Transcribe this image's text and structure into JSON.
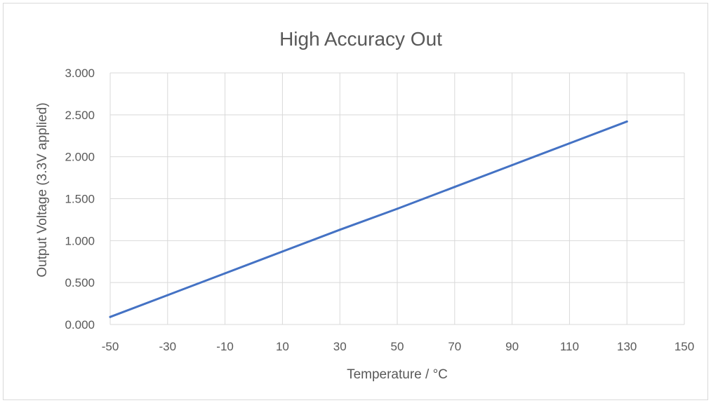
{
  "chart_data": {
    "type": "line",
    "title": "High Accuracy Out",
    "xlabel": "Temperature / °C",
    "ylabel": "Output Voltage (3.3V applied)",
    "xlim": [
      -50,
      150
    ],
    "ylim": [
      0,
      3
    ],
    "x_ticks": [
      -50,
      -30,
      -10,
      10,
      30,
      50,
      70,
      90,
      110,
      130,
      150
    ],
    "x_tick_labels": [
      "-50",
      "-30",
      "-10",
      "10",
      "30",
      "50",
      "70",
      "90",
      "110",
      "130",
      "150"
    ],
    "y_ticks": [
      0,
      0.5,
      1,
      1.5,
      2,
      2.5,
      3
    ],
    "y_tick_labels": [
      "0.000",
      "0.500",
      "1.000",
      "1.500",
      "2.000",
      "2.500",
      "3.000"
    ],
    "grid": true,
    "legend": "none",
    "series": [
      {
        "color": "#4472c4",
        "x": [
          -50,
          -30,
          -10,
          10,
          30,
          50,
          70,
          90,
          110,
          130
        ],
        "y": [
          0.09,
          0.35,
          0.61,
          0.87,
          1.13,
          1.38,
          1.64,
          1.9,
          2.16,
          2.42
        ]
      }
    ]
  }
}
